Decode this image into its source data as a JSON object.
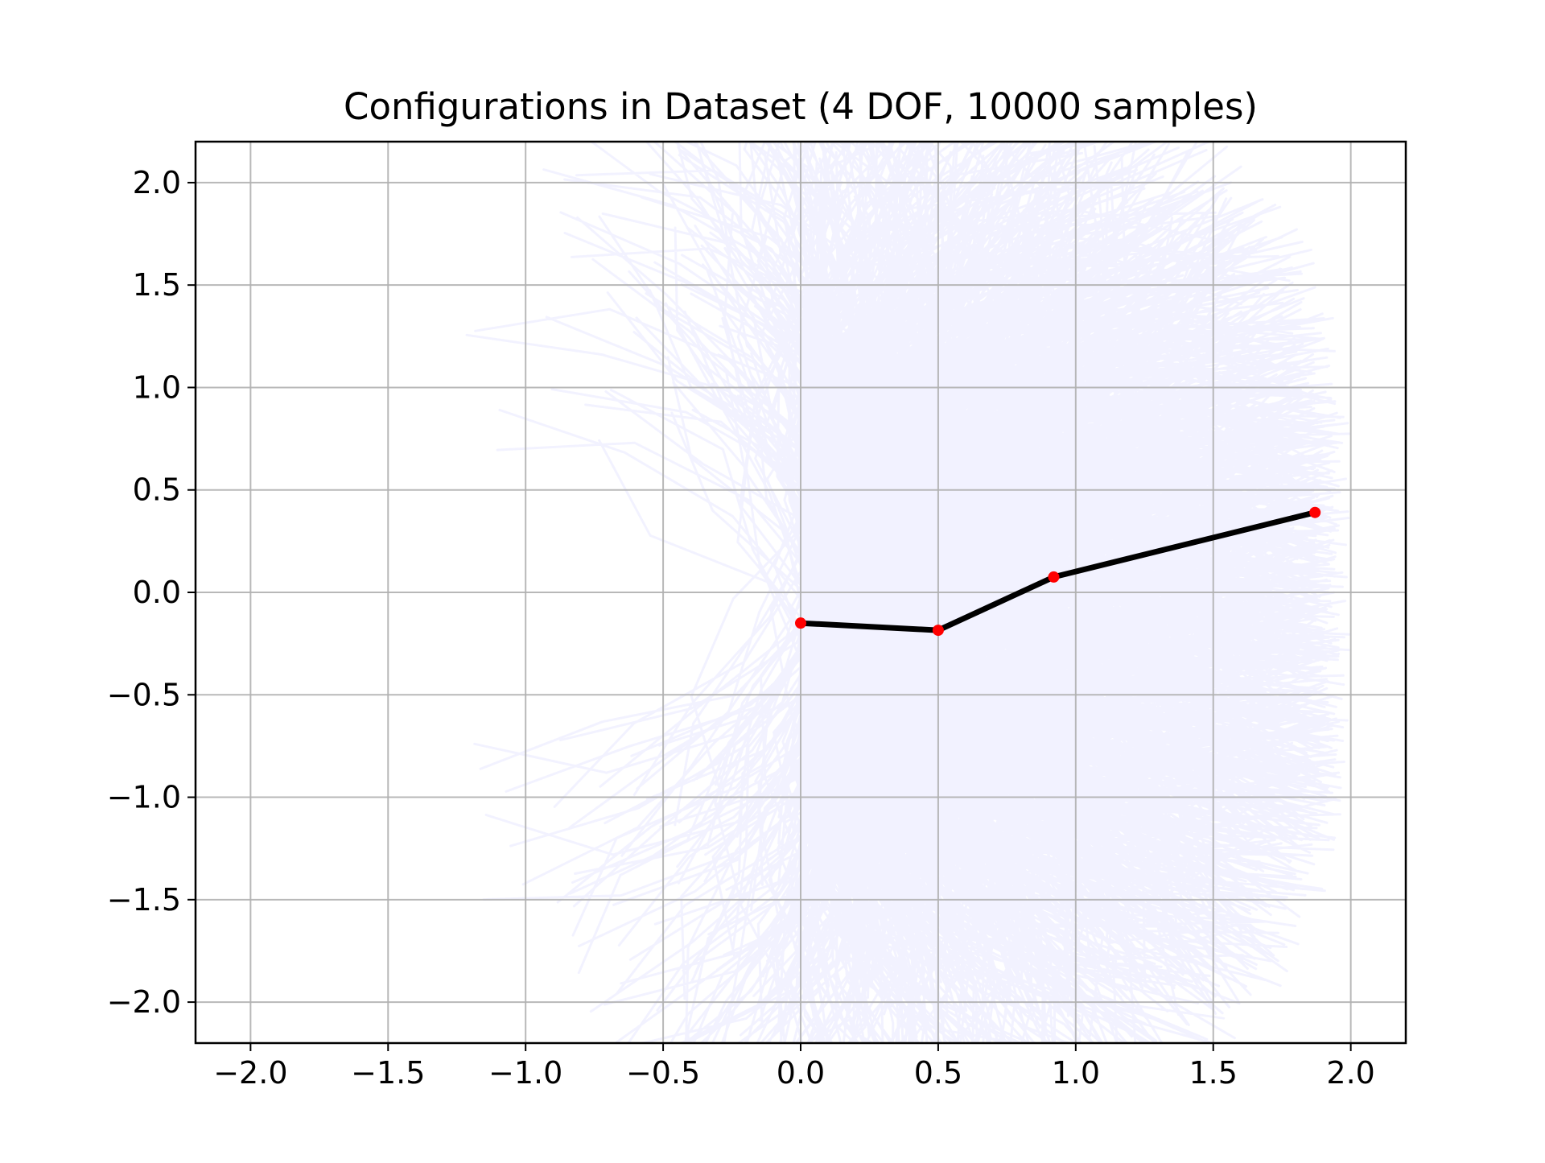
{
  "chart_data": {
    "type": "line",
    "title": "Configurations in Dataset (4 DOF, 10000 samples)",
    "xlabel": "",
    "ylabel": "",
    "xlim": [
      -2.2,
      2.2
    ],
    "ylim": [
      -2.2,
      2.2
    ],
    "grid": true,
    "xticks": [
      -2.0,
      -1.5,
      -1.0,
      -0.5,
      0.0,
      0.5,
      1.0,
      1.5,
      2.0
    ],
    "yticks": [
      -2.0,
      -1.5,
      -1.0,
      -0.5,
      0.0,
      0.5,
      1.0,
      1.5,
      2.0
    ],
    "xtick_labels": [
      "−2.0",
      "−1.5",
      "−1.0",
      "−0.5",
      "0.0",
      "0.5",
      "1.0",
      "1.5",
      "2.0"
    ],
    "ytick_labels": [
      "−2.0",
      "−1.5",
      "−1.0",
      "−0.5",
      "0.0",
      "0.5",
      "1.0",
      "1.5",
      "2.0"
    ],
    "samples": {
      "count": 10000,
      "dof": 4,
      "color": "#0000ff",
      "base_x": 0.0,
      "base_y_range": [
        -1.0,
        1.0
      ],
      "x_extent": [
        -1.6,
        2.0
      ],
      "y_extent": [
        -2.2,
        2.2
      ]
    },
    "highlighted_configuration": {
      "x": [
        0.0,
        0.5,
        0.92,
        1.87
      ],
      "y": [
        -0.15,
        -0.185,
        0.075,
        0.39
      ],
      "line_color": "#000000",
      "joint_color": "#ff0000"
    }
  }
}
